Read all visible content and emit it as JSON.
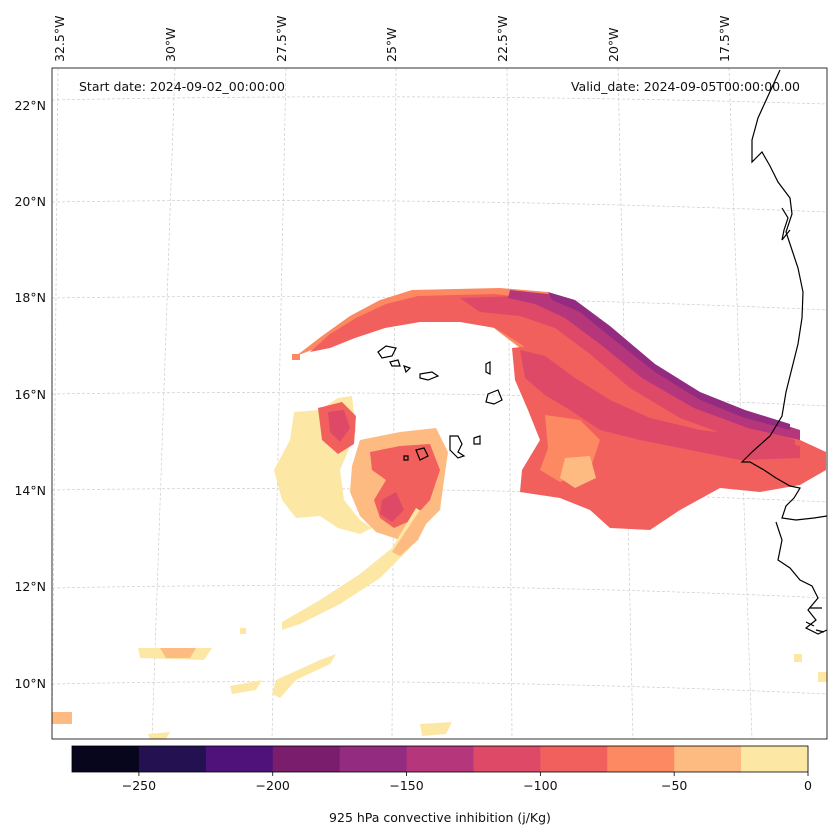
{
  "chart_data": {
    "type": "heatmap",
    "projection": "lambert-conformal",
    "lon_ticks": [
      "32.5°W",
      "30°W",
      "27.5°W",
      "25°W",
      "22.5°W",
      "20°W",
      "17.5°W"
    ],
    "lat_ticks": [
      "22°N",
      "20°N",
      "18°N",
      "16°N",
      "14°N",
      "12°N",
      "10°N"
    ],
    "lon_values": [
      -32.5,
      -30,
      -27.5,
      -25,
      -22.5,
      -20,
      -17.5
    ],
    "lat_values": [
      22,
      20,
      18,
      16,
      14,
      12,
      10
    ],
    "extent": {
      "lon": [
        -33.3,
        -15.2
      ],
      "lat": [
        8.9,
        22.8
      ]
    },
    "annotations": {
      "start": "Start date: 2024-09-02_00:00:00",
      "valid": "Valid_date: 2024-09-05T00:00:00.00"
    },
    "colorbar": {
      "label": "925 hPa convective inhibition (j/Kg)",
      "levels": [
        -275,
        -250,
        -225,
        -200,
        -175,
        -150,
        -125,
        -100,
        -75,
        -50,
        -25,
        0
      ],
      "tick_values": [
        -250,
        -200,
        -150,
        -100,
        -50,
        0
      ],
      "tick_labels": [
        "−250",
        "−200",
        "−150",
        "−100",
        "−50",
        "0"
      ],
      "colormap": "magma",
      "colors": [
        "#07061c",
        "#231151",
        "#4f127b",
        "#7a1d6d",
        "#932b80",
        "#b5367a",
        "#de4968",
        "#f1605d",
        "#fc8961",
        "#febb81",
        "#fde7a4"
      ]
    },
    "fields": [
      {
        "region": "north arc band (17-18 N, 27 W to 19 W)",
        "min_cin": -150,
        "typical_cin": -100
      },
      {
        "region": "easterly band to Senegal coast (14-16 N, 21 W to 15 W)",
        "min_cin": -175,
        "typical_cin": -100
      },
      {
        "region": "spiral west of Cape Verde (13-16 N, 29.5 W to 25 W)",
        "min_cin": -125,
        "typical_cin": -25
      },
      {
        "region": "scattered weak CIN (9-12 N)",
        "min_cin": -50,
        "typical_cin": -25
      }
    ],
    "grid": true,
    "coastlines": true
  }
}
